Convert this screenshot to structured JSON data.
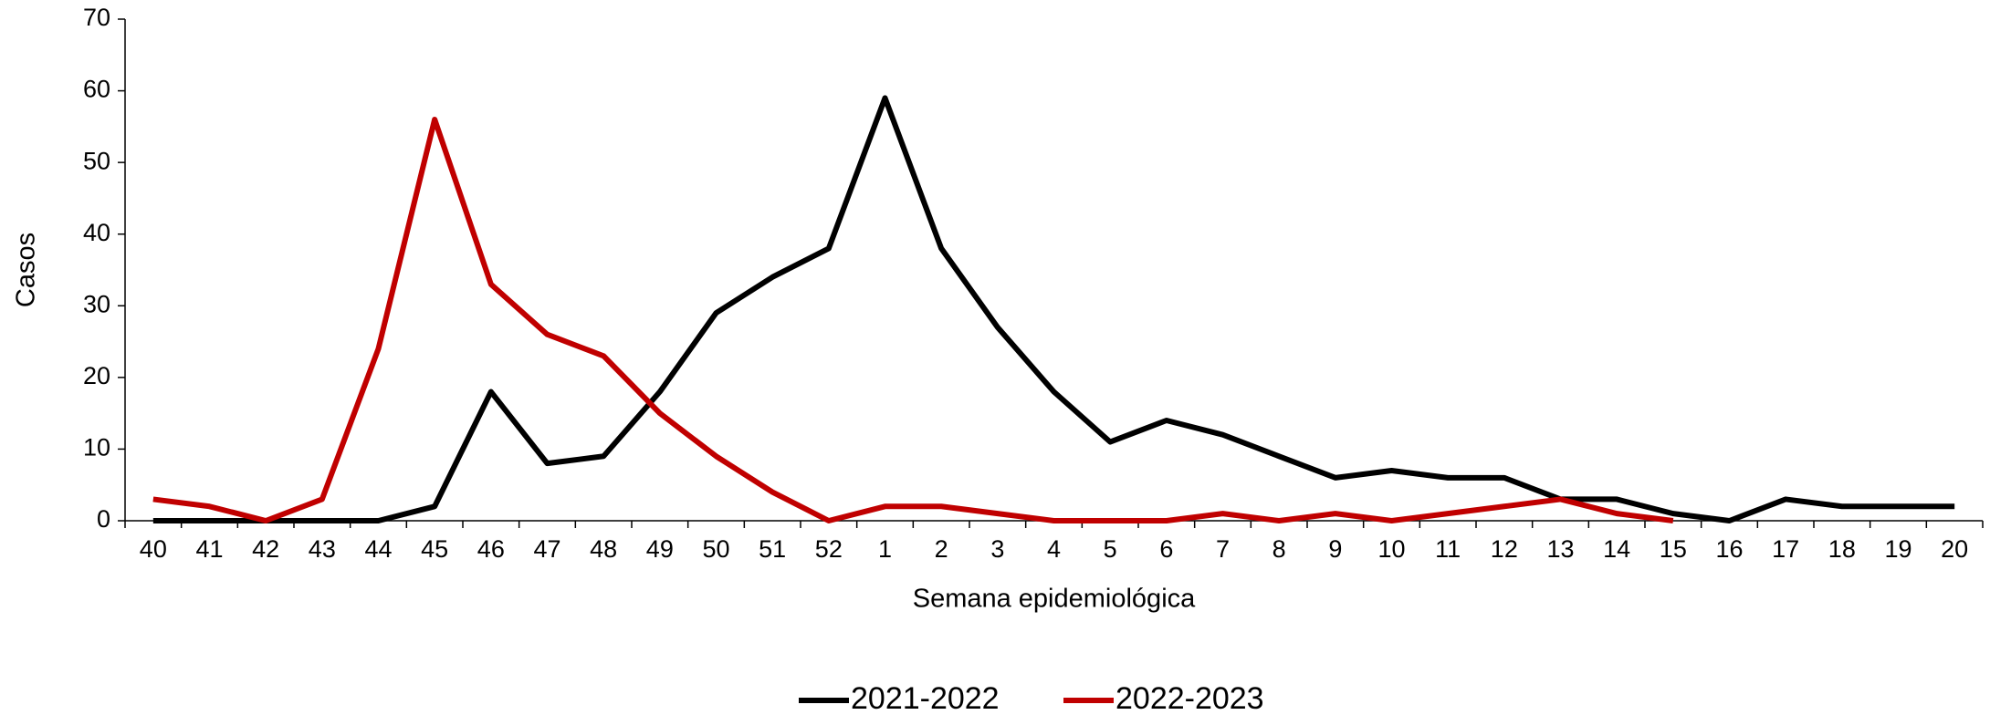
{
  "chart_data": {
    "type": "line",
    "x_label": "Semana epidemiológica",
    "y_label": "Casos",
    "categories": [
      "40",
      "41",
      "42",
      "43",
      "44",
      "45",
      "46",
      "47",
      "48",
      "49",
      "50",
      "51",
      "52",
      "1",
      "2",
      "3",
      "4",
      "5",
      "6",
      "7",
      "8",
      "9",
      "10",
      "11",
      "12",
      "13",
      "14",
      "15",
      "16",
      "17",
      "18",
      "19",
      "20"
    ],
    "series": [
      {
        "name": "2021-2022",
        "color": "#000000",
        "values": [
          0,
          0,
          0,
          0,
          0,
          2,
          18,
          8,
          9,
          18,
          29,
          34,
          38,
          59,
          38,
          27,
          18,
          11,
          14,
          12,
          9,
          6,
          7,
          6,
          6,
          3,
          3,
          1,
          0,
          3,
          2,
          2,
          2
        ]
      },
      {
        "name": "2022-2023",
        "color": "#c00000",
        "values": [
          3,
          2,
          0,
          3,
          24,
          56,
          33,
          26,
          23,
          15,
          9,
          4,
          0,
          2,
          2,
          1,
          0,
          0,
          0,
          1,
          0,
          1,
          0,
          1,
          2,
          3,
          1,
          0,
          null,
          null,
          null,
          null,
          null
        ]
      }
    ],
    "ylim": [
      0,
      70
    ],
    "yticks": [
      0,
      10,
      20,
      30,
      40,
      50,
      60,
      70
    ],
    "legend": "bottom"
  }
}
